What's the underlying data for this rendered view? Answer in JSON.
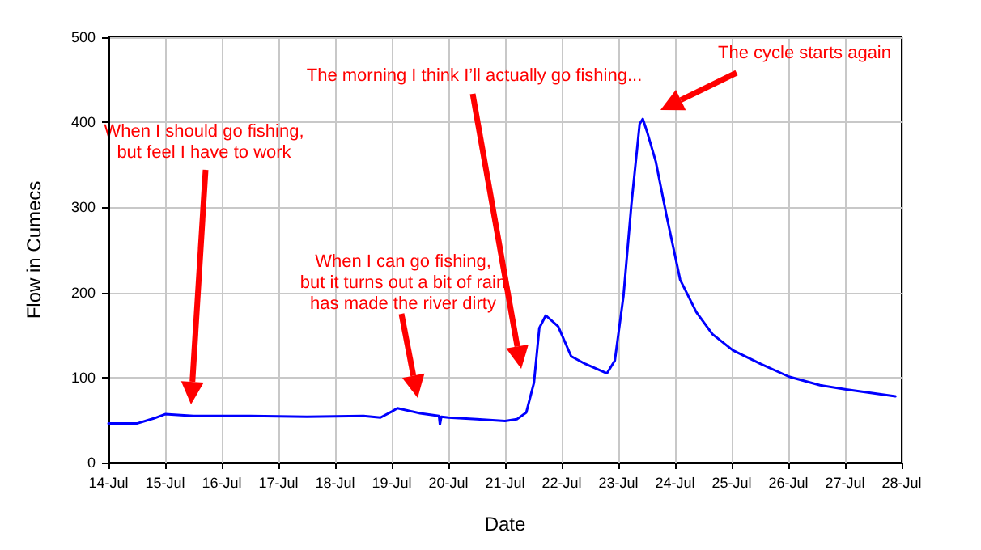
{
  "chart_data": {
    "type": "line",
    "xlabel": "Date",
    "ylabel": "Flow in Cumecs",
    "x": [
      "--07-14T00:00",
      "--07-14T12:00",
      "--07-14T19:12",
      "--07-15T00:00",
      "--07-15T12:00",
      "--07-16T12:00",
      "--07-17T12:00",
      "--07-18T12:00",
      "--07-18T19:12",
      "--07-19T00:00",
      "--07-19T02:24",
      "--07-19T12:00",
      "--07-19T20:00",
      "--07-19T20:24",
      "--07-19T21:00",
      "--07-20T00:00",
      "--07-20T12:00",
      "--07-21T00:00",
      "--07-21T05:00",
      "--07-21T09:00",
      "--07-21T12:15",
      "--07-21T14:30",
      "--07-21T17:15",
      "--07-21T22:30",
      "--07-22T04:00",
      "--07-22T10:00",
      "--07-22T19:10",
      "--07-22T22:30",
      "--07-23T02:10",
      "--07-23T05:30",
      "--07-23T09:00",
      "--07-23T10:20",
      "--07-23T12:15",
      "--07-23T15:50",
      "--07-23T20:25",
      "--07-24T02:10",
      "--07-24T09:00",
      "--07-24T15:50",
      "--07-25T00:30",
      "--07-25T12:15",
      "--07-26T00:15",
      "--07-26T13:25",
      "--07-27T00:30",
      "--07-27T21:20"
    ],
    "series": [
      {
        "color": "#0000ff",
        "values": [
          46,
          46,
          52,
          57,
          55,
          55,
          54,
          55,
          53,
          60,
          64,
          58,
          55,
          45,
          54,
          53,
          51,
          49,
          51,
          59,
          94,
          158,
          173,
          160,
          125,
          116,
          105,
          120,
          196,
          303,
          398,
          404,
          388,
          354,
          290,
          215,
          177,
          151,
          132,
          116,
          101,
          91,
          86,
          78
        ]
      }
    ],
    "xlim": [
      "--07-14",
      "--07-28"
    ],
    "xticks": [
      {
        "value": "--07-14",
        "label": "14-Jul"
      },
      {
        "value": "--07-15",
        "label": "15-Jul"
      },
      {
        "value": "--07-16",
        "label": "16-Jul"
      },
      {
        "value": "--07-17",
        "label": "17-Jul"
      },
      {
        "value": "--07-18",
        "label": "18-Jul"
      },
      {
        "value": "--07-19",
        "label": "19-Jul"
      },
      {
        "value": "--07-20",
        "label": "20-Jul"
      },
      {
        "value": "--07-21",
        "label": "21-Jul"
      },
      {
        "value": "--07-22",
        "label": "22-Jul"
      },
      {
        "value": "--07-23",
        "label": "23-Jul"
      },
      {
        "value": "--07-24",
        "label": "24-Jul"
      },
      {
        "value": "--07-25",
        "label": "25-Jul"
      },
      {
        "value": "--07-26",
        "label": "26-Jul"
      },
      {
        "value": "--07-27",
        "label": "27-Jul"
      },
      {
        "value": "--07-28",
        "label": "28-Jul"
      }
    ],
    "ylim": [
      0,
      500
    ],
    "yticks": [
      0,
      100,
      200,
      300,
      400,
      500
    ],
    "grid": true,
    "marker": "none",
    "line_style": "solid",
    "annotations": [
      "When I should go fishing,\nbut feel I have to work",
      "When I can go fishing,\nbut it turns out a bit of rain\nhas made the river dirty",
      "The morning I think I’ll actually go fishing...",
      "The cycle starts again"
    ]
  }
}
